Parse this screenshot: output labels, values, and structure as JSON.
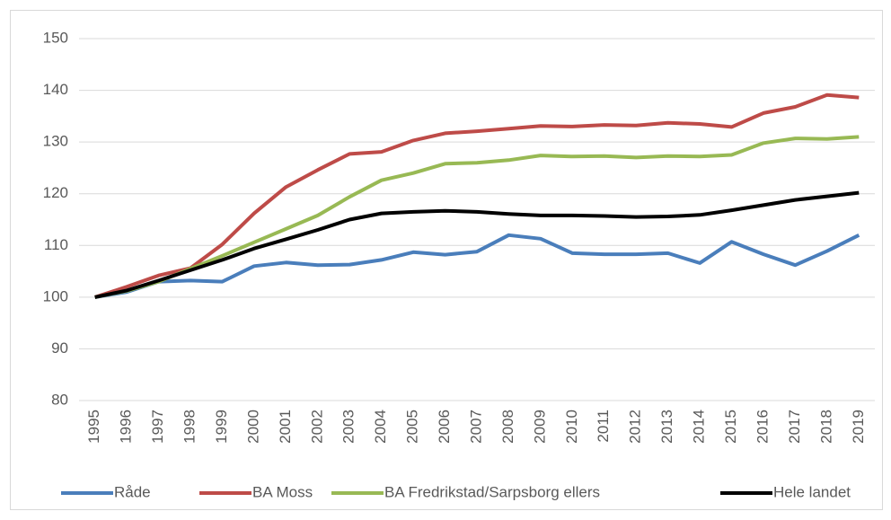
{
  "chart_data": {
    "type": "line",
    "categories": [
      "1995",
      "1996",
      "1997",
      "1998",
      "1999",
      "2000",
      "2001",
      "2002",
      "2003",
      "2004",
      "2005",
      "2006",
      "2007",
      "2008",
      "2009",
      "2010",
      "2011",
      "2012",
      "2013",
      "2014",
      "2015",
      "2016",
      "2017",
      "2018",
      "2019"
    ],
    "series": [
      {
        "name": "Råde",
        "color": "#4a7ebb",
        "values": [
          100,
          101,
          103,
          103.2,
          103,
          106,
          106.7,
          106.2,
          106.3,
          107.2,
          108.7,
          108.2,
          108.8,
          112,
          111.3,
          108.5,
          108.3,
          108.3,
          108.5,
          106.6,
          110.7,
          108.3,
          106.2,
          108.9,
          112
        ]
      },
      {
        "name": "BA Moss",
        "color": "#be4b48",
        "values": [
          100,
          102,
          104.2,
          105.6,
          110.2,
          116.2,
          121.3,
          124.6,
          127.7,
          128.1,
          130.3,
          131.7,
          132.1,
          132.6,
          133.1,
          133,
          133.3,
          133.2,
          133.7,
          133.5,
          132.9,
          135.6,
          136.8,
          139.1,
          138.6
        ]
      },
      {
        "name": "BA Fredrikstad/Sarpsborg ellers",
        "color": "#98b954",
        "values": [
          100,
          101.2,
          103,
          105.5,
          108,
          110.6,
          113.2,
          115.8,
          119.4,
          122.6,
          124,
          125.8,
          126,
          126.5,
          127.4,
          127.2,
          127.3,
          127,
          127.3,
          127.2,
          127.5,
          129.8,
          130.7,
          130.6,
          131
        ]
      },
      {
        "name": "Hele landet",
        "color": "#000000",
        "values": [
          100,
          101.3,
          103.2,
          105.2,
          107.2,
          109.4,
          111.2,
          113,
          115,
          116.2,
          116.5,
          116.7,
          116.5,
          116.1,
          115.8,
          115.8,
          115.7,
          115.5,
          115.6,
          115.9,
          116.8,
          117.8,
          118.8,
          119.5,
          120.2
        ]
      }
    ],
    "ylim": [
      80,
      150
    ],
    "yticks": [
      80,
      90,
      100,
      110,
      120,
      130,
      140,
      150
    ],
    "grid": true,
    "legend": "bottom"
  }
}
